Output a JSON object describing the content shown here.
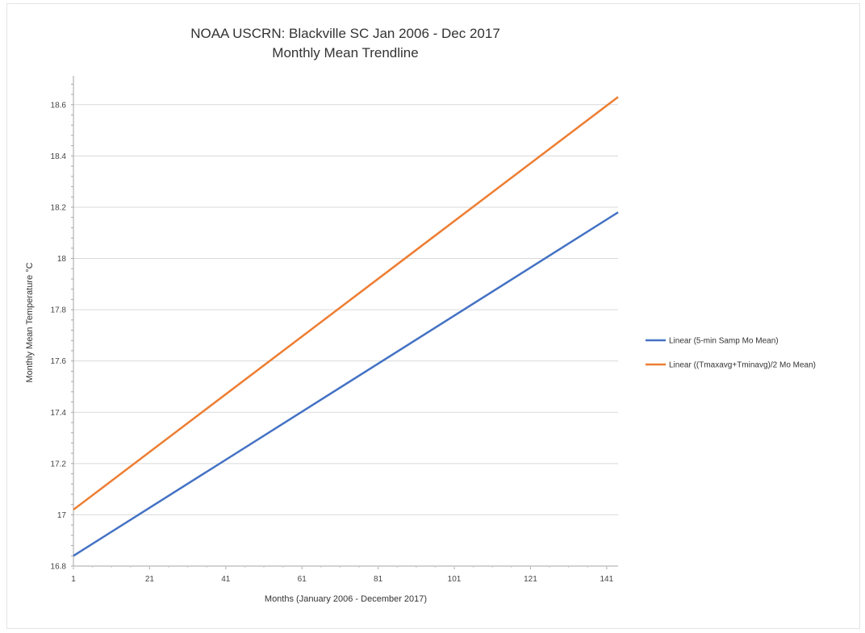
{
  "chart_data": {
    "type": "line",
    "title": "NOAA USCRN:  Blackville SC Jan 2006 - Dec 2017",
    "subtitle": "Monthly Mean Trendline",
    "xlabel": "Months (January 2006 - December 2017)",
    "ylabel": "Monthly Mean Temperature °C",
    "xlim": [
      1,
      144
    ],
    "ylim": [
      16.8,
      18.7
    ],
    "x_ticks": [
      1,
      21,
      41,
      61,
      81,
      101,
      121,
      141
    ],
    "y_ticks": [
      "16.8",
      "17",
      "17.2",
      "17.4",
      "17.6",
      "17.8",
      "18",
      "18.2",
      "18.4",
      "18.6"
    ],
    "grid": "horizontal",
    "legend_position": "right",
    "series": [
      {
        "name": "Linear (5-min Samp Mo Mean)",
        "color": "#4472c4",
        "x": [
          1,
          144
        ],
        "y": [
          16.84,
          18.18
        ]
      },
      {
        "name": "Linear ((Tmaxavg+Tminavg)/2 Mo Mean)",
        "color": "#ed7d31",
        "x": [
          1,
          144
        ],
        "y": [
          17.02,
          18.63
        ]
      }
    ]
  }
}
